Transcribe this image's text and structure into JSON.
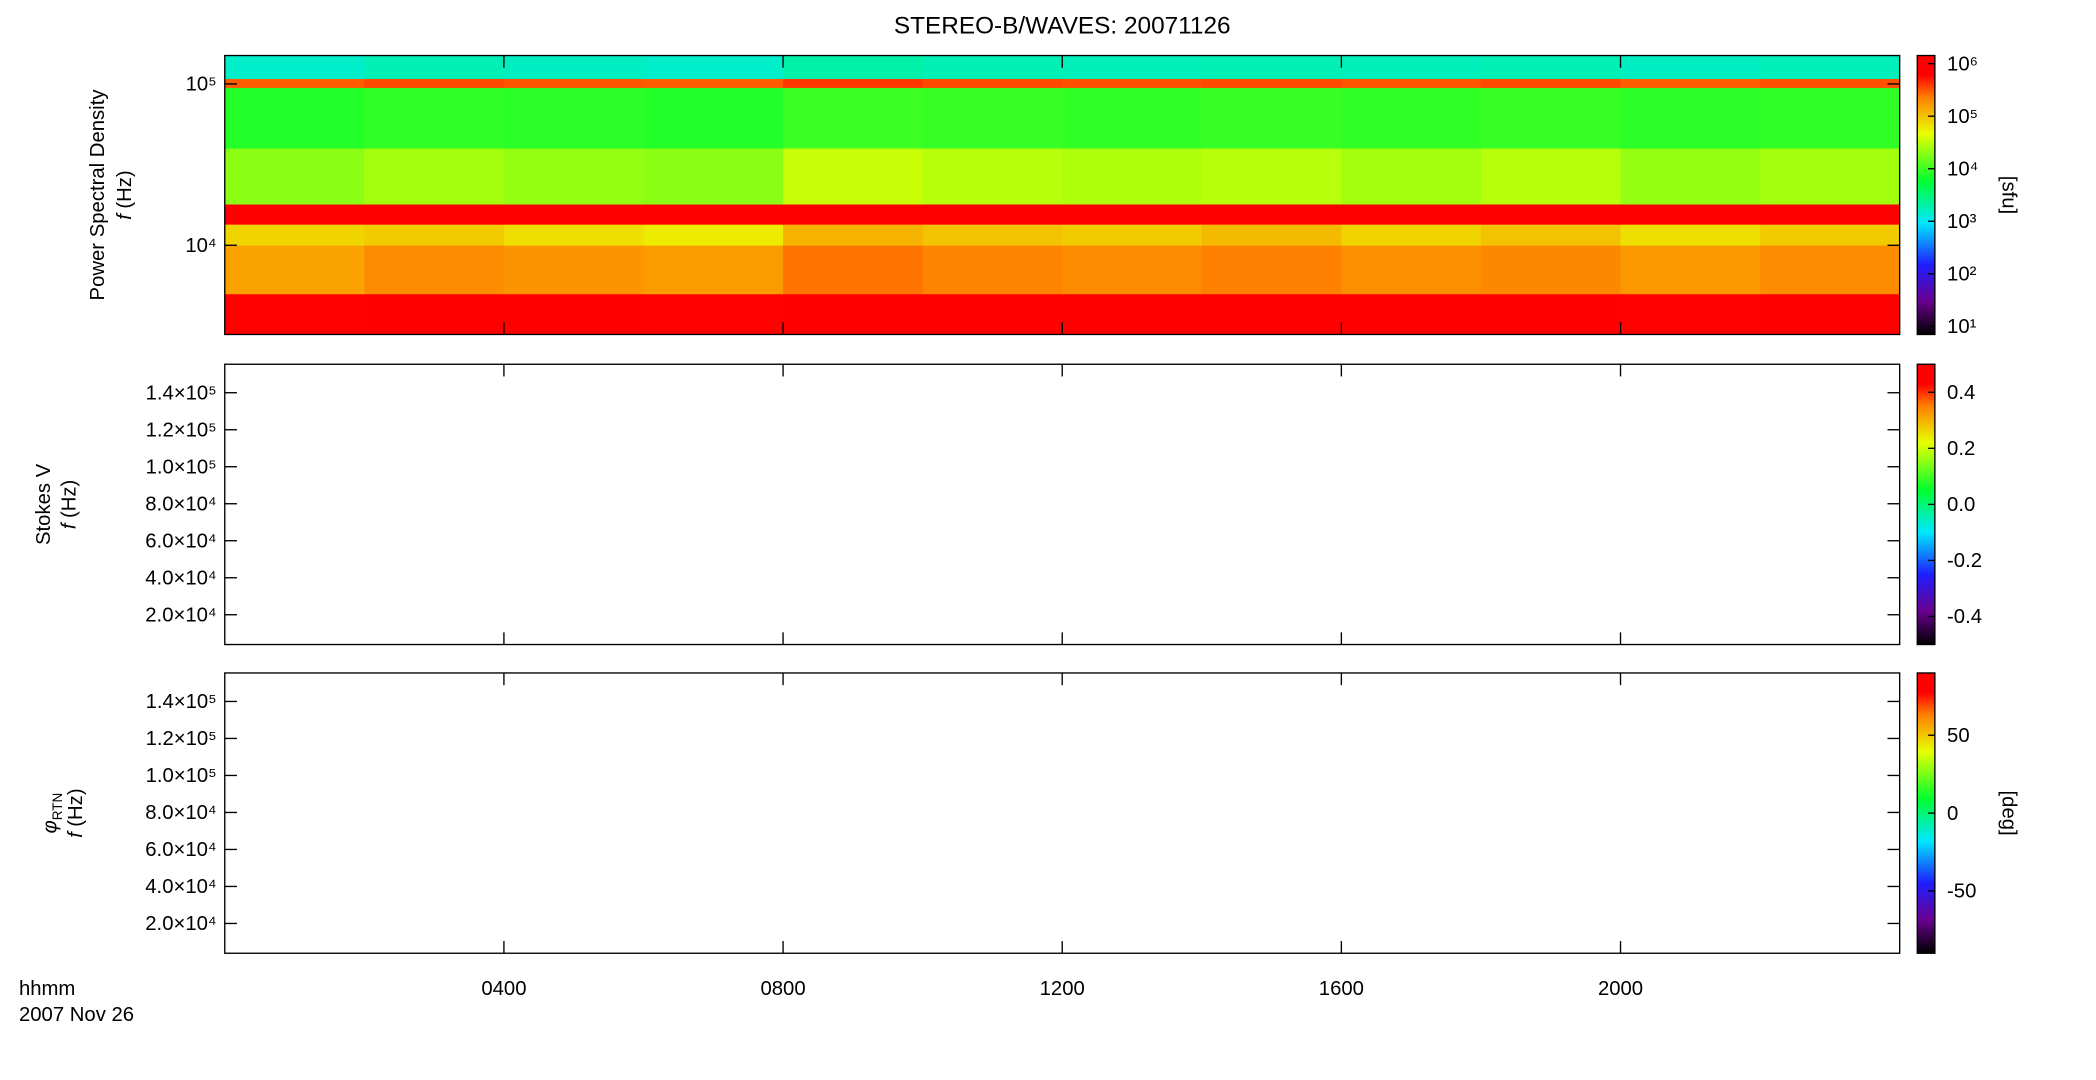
{
  "chart_data": [
    {
      "type": "heatmap",
      "title": "STEREO-B/WAVES: 20071126",
      "ylabel": "Power Spectral Density",
      "ylabel_var": "f",
      "ylabel_unit": "(Hz)",
      "xlim": [
        0,
        24
      ],
      "xticks": [
        4,
        8,
        12,
        16,
        20
      ],
      "ylog": true,
      "ylim": [
        2800,
        150000
      ],
      "yticks": [
        {
          "value": 10000,
          "label": "10⁴"
        },
        {
          "value": 100000,
          "label": "10⁵"
        }
      ],
      "x_edges": [
        0,
        2,
        4,
        6,
        8,
        10,
        12,
        14,
        16,
        18,
        20,
        22,
        24
      ],
      "y_edges": [
        2800,
        5000,
        10000,
        13500,
        18000,
        40000,
        95000,
        108000,
        150000
      ],
      "z": [
        [
          600000,
          700000,
          650000,
          600000,
          800000,
          700000,
          750000,
          700000,
          650000,
          700000,
          600000,
          650000
        ],
        [
          150000,
          200000,
          180000,
          160000,
          250000,
          220000,
          200000,
          230000,
          190000,
          210000,
          170000,
          200000
        ],
        [
          80000,
          90000,
          70000,
          60000,
          120000,
          100000,
          90000,
          110000,
          80000,
          100000,
          70000,
          90000
        ],
        [
          900000,
          950000,
          800000,
          850000,
          1000000,
          950000,
          900000,
          950000,
          900000,
          1000000,
          850000,
          900000
        ],
        [
          20000,
          25000,
          22000,
          20000,
          35000,
          30000,
          28000,
          30000,
          25000,
          30000,
          22000,
          25000
        ],
        [
          8000,
          9000,
          8500,
          8000,
          10000,
          9500,
          9000,
          9500,
          9000,
          9500,
          8500,
          9000
        ],
        [
          300000,
          350000,
          320000,
          300000,
          400000,
          350000,
          330000,
          350000,
          320000,
          350000,
          300000,
          330000
        ],
        [
          1500,
          1800,
          1600,
          1500,
          2000,
          1800,
          1700,
          1800,
          1700,
          1800,
          1600,
          1700
        ]
      ],
      "colormap": [
        [
          0,
          "#000000"
        ],
        [
          0.12,
          "#6a0090"
        ],
        [
          0.25,
          "#1e1eff"
        ],
        [
          0.4,
          "#00e8ff"
        ],
        [
          0.55,
          "#00ff30"
        ],
        [
          0.72,
          "#e8ff00"
        ],
        [
          0.85,
          "#ff8000"
        ],
        [
          0.93,
          "#ff0000"
        ],
        [
          1,
          "#ff0000"
        ]
      ],
      "colorbar": {
        "log": true,
        "clim": [
          7,
          1430000
        ],
        "label": "[sfu]",
        "ticks": [
          {
            "value": 10,
            "label": "10¹"
          },
          {
            "value": 100,
            "label": "10²"
          },
          {
            "value": 1000,
            "label": "10³"
          },
          {
            "value": 10000,
            "label": "10⁴"
          },
          {
            "value": 100000,
            "label": "10⁵"
          },
          {
            "value": 1000000,
            "label": "10⁶"
          }
        ]
      }
    },
    {
      "type": "heatmap",
      "ylabel": "Stokes V",
      "ylabel_var": "f",
      "ylabel_unit": "(Hz)",
      "xlim": [
        0,
        24
      ],
      "xticks": [
        4,
        8,
        12,
        16,
        20
      ],
      "ylim": [
        3900,
        155400
      ],
      "yticks": [
        {
          "value": 20000,
          "label": "2.0×10⁴"
        },
        {
          "value": 40000,
          "label": "4.0×10⁴"
        },
        {
          "value": 60000,
          "label": "6.0×10⁴"
        },
        {
          "value": 80000,
          "label": "8.0×10⁴"
        },
        {
          "value": 100000,
          "label": "1.0×10⁵"
        },
        {
          "value": 120000,
          "label": "1.2×10⁵"
        },
        {
          "value": 140000,
          "label": "1.4×10⁵"
        }
      ],
      "colorbar": {
        "log": false,
        "clim": [
          -0.5,
          0.5
        ],
        "ticks": [
          -0.4,
          -0.2,
          {
            "value": 0,
            "label": "0.0"
          },
          0.2,
          0.4
        ]
      }
    },
    {
      "type": "heatmap",
      "ylabel_symbol": "φ",
      "ylabel_subscript": "RTN",
      "ylabel_var": "f",
      "ylabel_unit": "(Hz)",
      "xlim": [
        0,
        24
      ],
      "xticks": [
        {
          "value": 4,
          "label": "0400"
        },
        {
          "value": 8,
          "label": "0800"
        },
        {
          "value": 12,
          "label": "1200"
        },
        {
          "value": 16,
          "label": "1600"
        },
        {
          "value": 20,
          "label": "2000"
        }
      ],
      "xlabel": [
        "hhmm",
        "2007 Nov 26"
      ],
      "ylim": [
        3900,
        155400
      ],
      "yticks": [
        {
          "value": 20000,
          "label": "2.0×10⁴"
        },
        {
          "value": 40000,
          "label": "4.0×10⁴"
        },
        {
          "value": 60000,
          "label": "6.0×10⁴"
        },
        {
          "value": 80000,
          "label": "8.0×10⁴"
        },
        {
          "value": 100000,
          "label": "1.0×10⁵"
        },
        {
          "value": 120000,
          "label": "1.2×10⁵"
        },
        {
          "value": 140000,
          "label": "1.4×10⁵"
        }
      ],
      "colorbar": {
        "log": false,
        "clim": [
          -90,
          90
        ],
        "label": "[deg]",
        "ticks": [
          -50,
          0,
          50
        ]
      }
    }
  ]
}
